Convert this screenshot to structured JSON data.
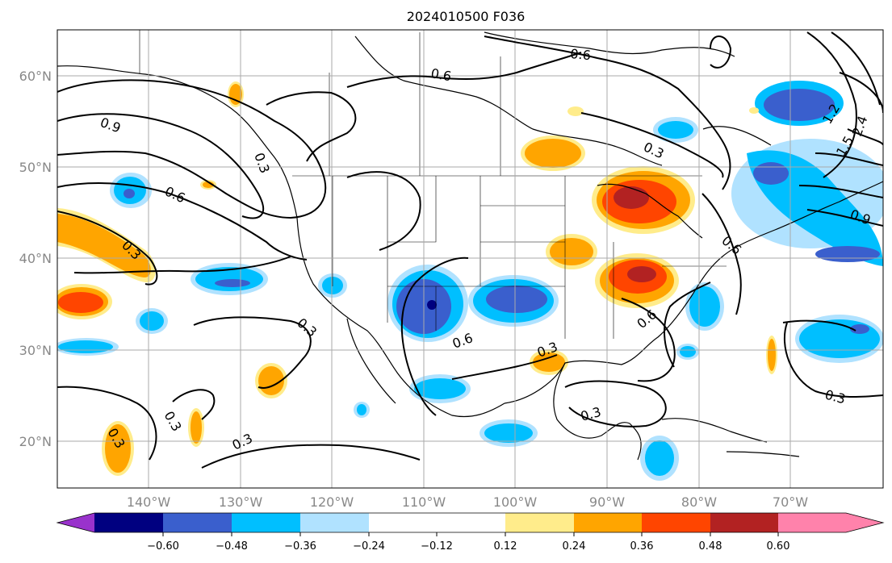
{
  "title": "2024010500 F036",
  "map": {
    "lat_labels": [
      "60°N",
      "50°N",
      "40°N",
      "30°N",
      "20°N"
    ],
    "lon_labels": [
      "140°W",
      "130°W",
      "120°W",
      "110°W",
      "100°W",
      "90°W",
      "80°W",
      "70°W"
    ]
  },
  "colorbar": {
    "ticks": [
      "−0.60",
      "−0.48",
      "−0.36",
      "−0.24",
      "−0.12",
      "0.12",
      "0.24",
      "0.36",
      "0.48",
      "0.60"
    ],
    "colors": {
      "lt_m060": "#9932CC",
      "m060_m048": "#000080",
      "m048_m036": "#3A5FCD",
      "m036_m024": "#00BFFF",
      "m024_m012": "#B0E2FF",
      "m012_012": "#FFFFFF",
      "p012_024": "#FFEC8B",
      "p024_036": "#FFA500",
      "p036_048": "#FF4500",
      "p048_060": "#B22222",
      "gt_060": "#FF82AB"
    }
  },
  "contour_labels": [
    "0.6",
    "0.6",
    "0.9",
    "0.6",
    "0.3",
    "0.3",
    "0.3",
    "0.3",
    "0.3",
    "0.3",
    "0.6",
    "0.3",
    "0.6",
    "0.3",
    "0.3",
    "0.3",
    "0.9",
    "0.6",
    "2.4",
    "1.5",
    "1.2"
  ]
}
